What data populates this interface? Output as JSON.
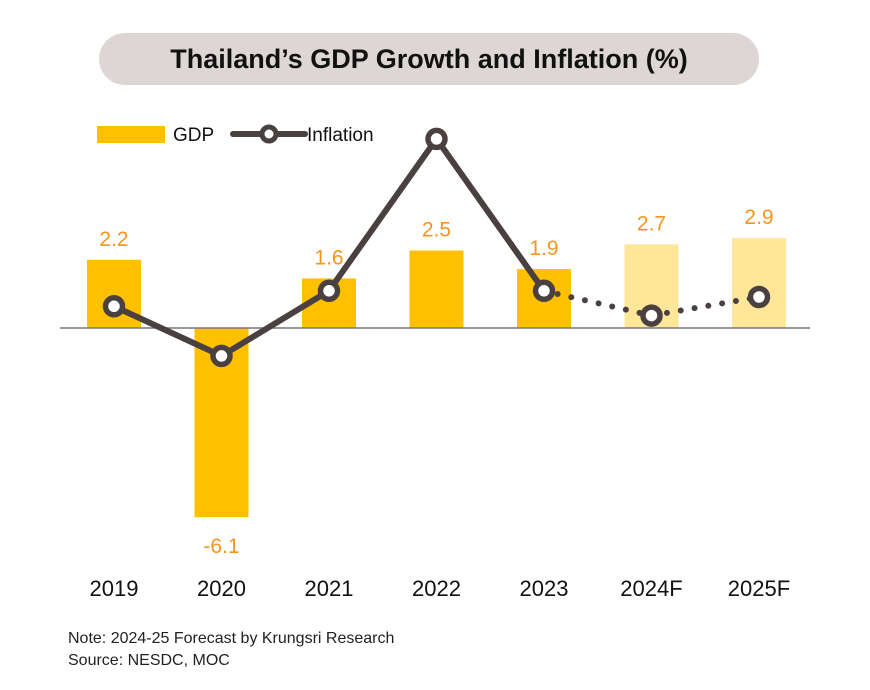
{
  "chart_data": {
    "type": "bar",
    "title": "Thailand’s GDP Growth and Inflation (%)",
    "xlabel": "",
    "ylabel": "",
    "categories": [
      "2019",
      "2020",
      "2021",
      "2022",
      "2023",
      "2024F",
      "2025F"
    ],
    "forecast_from_index": 5,
    "series": [
      {
        "name": "GDP",
        "type": "bar",
        "values": [
          2.2,
          -6.1,
          1.6,
          2.5,
          1.9,
          2.7,
          2.9
        ],
        "labels": [
          "2.2",
          "-6.1",
          "1.6",
          "2.5",
          "1.9",
          "2.7",
          "2.9"
        ],
        "color": "#ffc000",
        "forecast_color": "#ffe699"
      },
      {
        "name": "Inflation",
        "type": "line",
        "values": [
          0.7,
          -0.9,
          1.2,
          6.1,
          1.2,
          0.4,
          1.0
        ],
        "color": "#4a4040"
      }
    ],
    "ylim": [
      -6.5,
      6.5
    ],
    "grid": false,
    "legend": "top-left",
    "label_color": "#f7941d"
  },
  "legend": {
    "gdp": "GDP",
    "inflation": "Inflation"
  },
  "notes": {
    "note": "Note: 2024-25 Forecast by Krungsri Research",
    "source": "Source: NESDC, MOC"
  }
}
